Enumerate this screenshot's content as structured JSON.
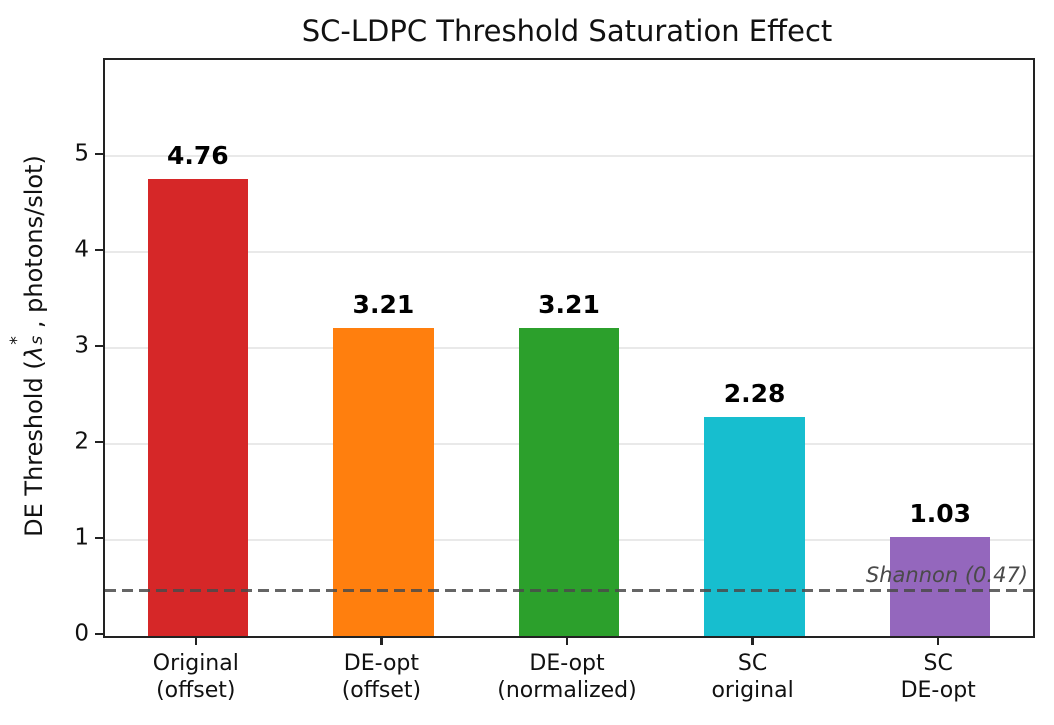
{
  "title": "SC-LDPC Threshold Saturation Effect",
  "ylabel_parts": {
    "prefix": "DE Threshold (",
    "symbol": "λ",
    "sup": "*",
    "sub": "s",
    "suffix": ", photons/slot)"
  },
  "chart_data": {
    "type": "bar",
    "title": "SC-LDPC Threshold Saturation Effect",
    "ylabel": "DE Threshold (λₛ*, photons/slot)",
    "xlabel": "",
    "categories": [
      [
        "Original",
        "(offset)"
      ],
      [
        "DE-opt",
        "(offset)"
      ],
      [
        "DE-opt",
        "(normalized)"
      ],
      [
        "SC",
        "original"
      ],
      [
        "SC",
        "DE-opt"
      ]
    ],
    "values": [
      4.76,
      3.21,
      3.21,
      2.28,
      1.03
    ],
    "value_labels": [
      "4.76",
      "3.21",
      "3.21",
      "2.28",
      "1.03"
    ],
    "bar_colors": [
      "#d62728",
      "#ff7f0e",
      "#2ca02c",
      "#17becf",
      "#9467bd"
    ],
    "ylim": [
      0,
      6
    ],
    "yticks": [
      0,
      1,
      2,
      3,
      4,
      5
    ],
    "grid": "horizontal gridlines at integer yticks, light gray, behind bars",
    "legend": "none",
    "reference_line": {
      "value": 0.47,
      "label": "Shannon (0.47)",
      "style": "dashed",
      "color": "#4a4a4a"
    },
    "colors": {
      "grid": "#e9e9e9",
      "spine": "#222222",
      "text": "#111111",
      "reference_text": "#4a4a4a",
      "background": "#ffffff"
    }
  }
}
